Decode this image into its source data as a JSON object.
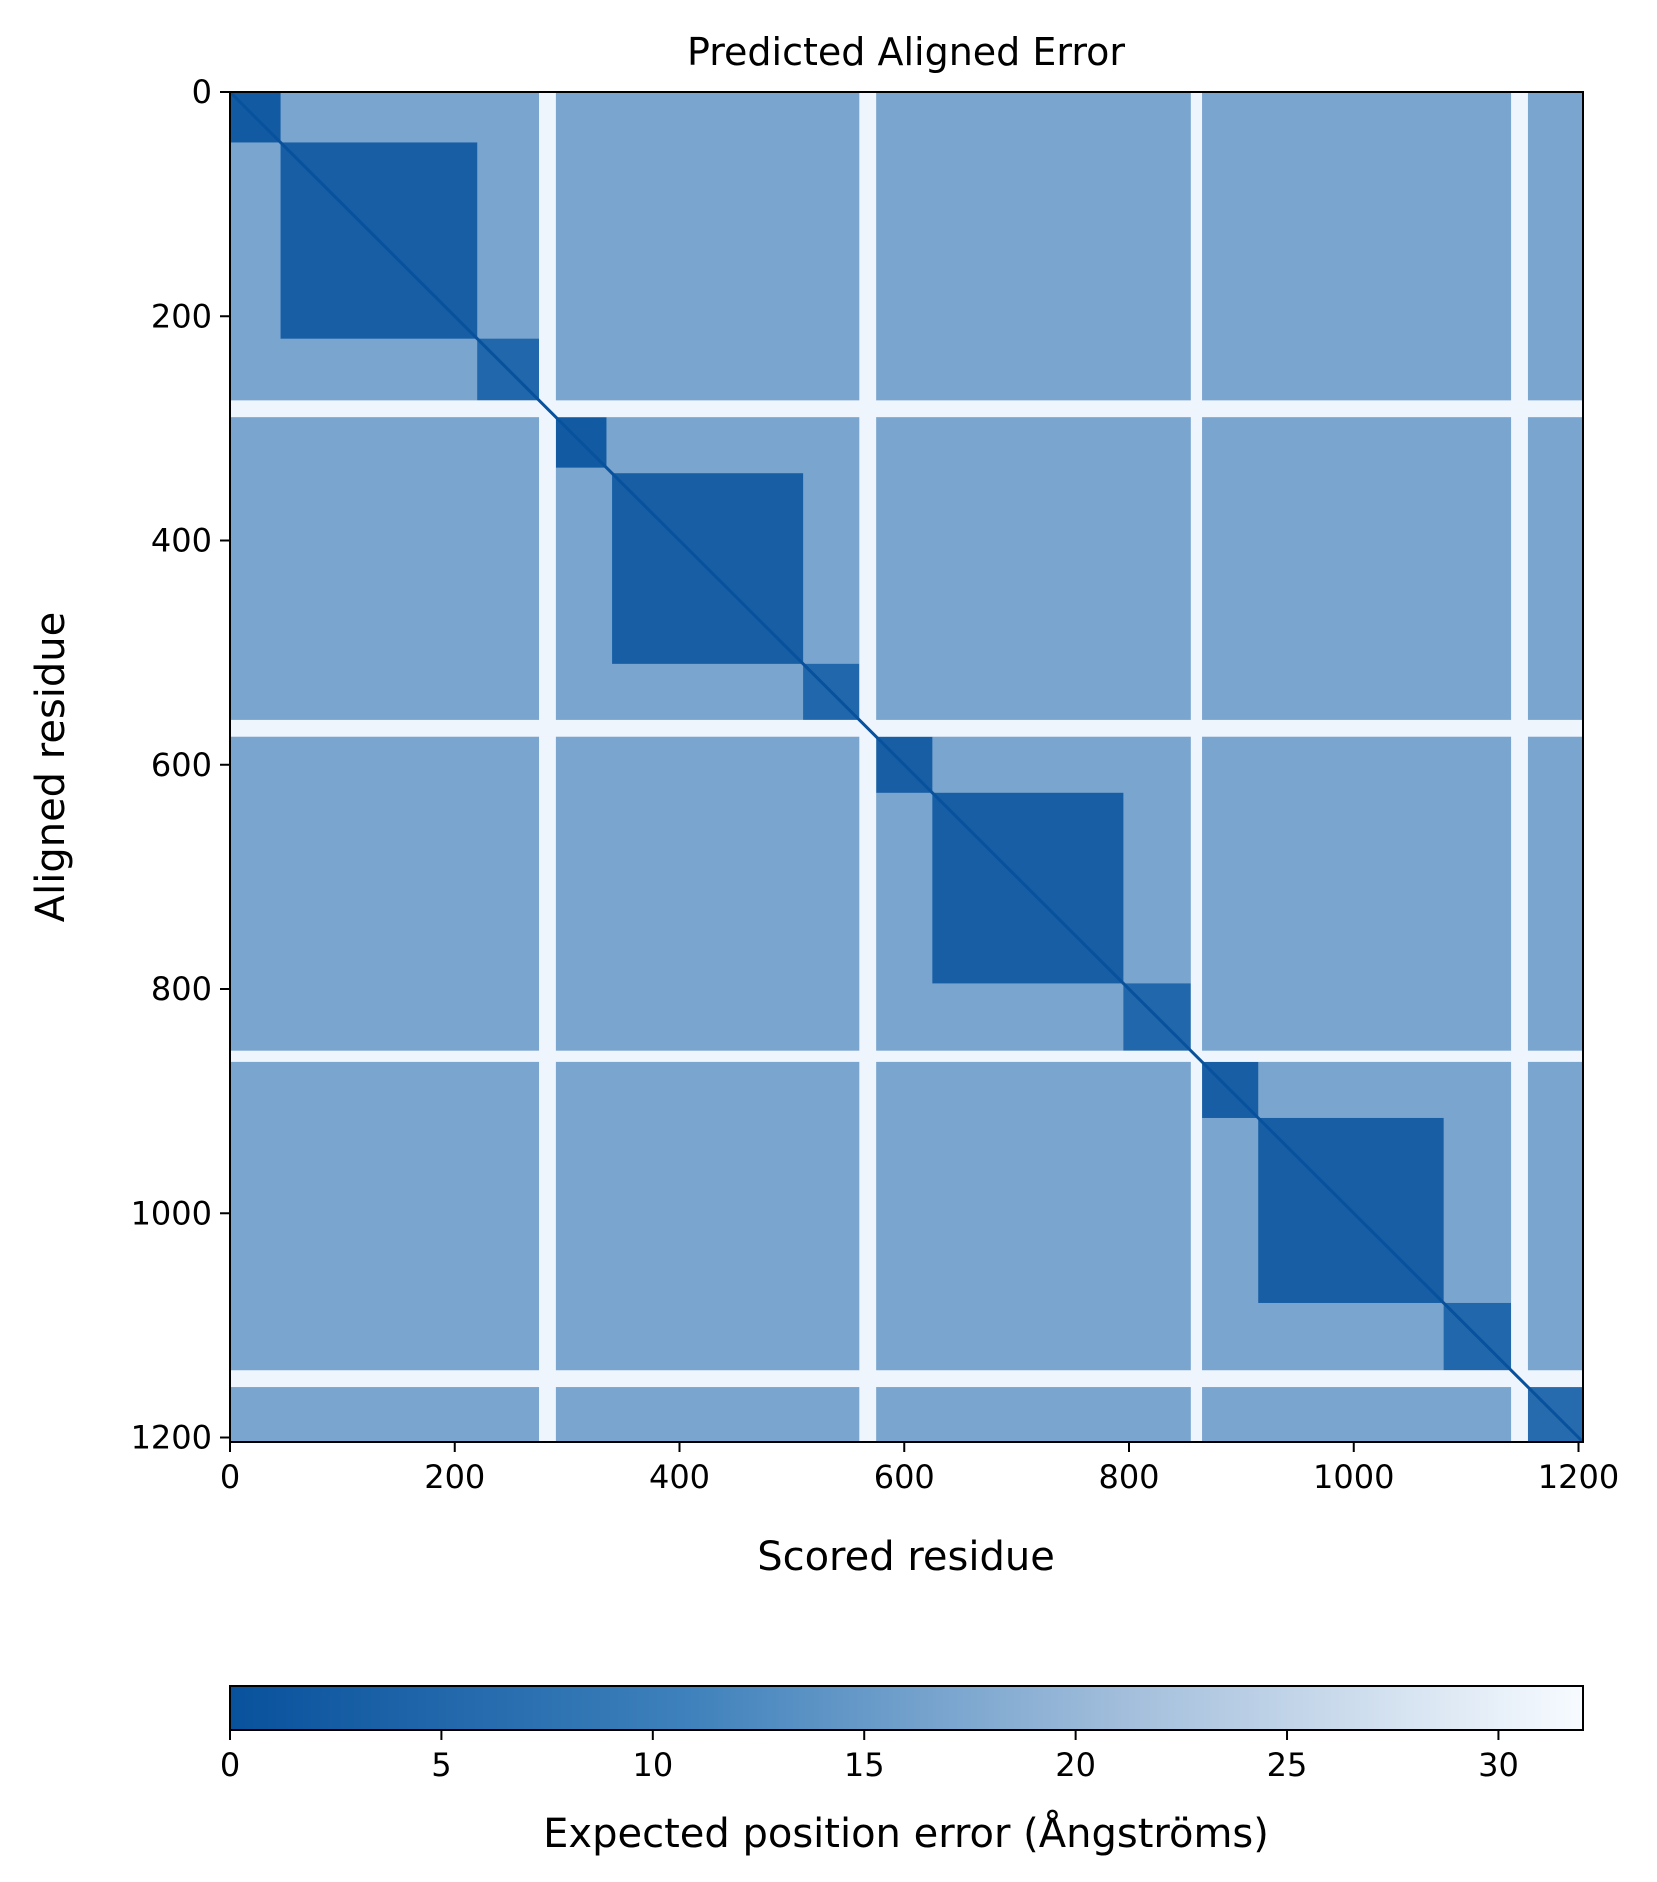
{
  "chart_data": {
    "type": "heatmap",
    "title": "Predicted Aligned Error",
    "xlabel": "Scored residue",
    "ylabel": "Aligned residue",
    "xlim": [
      0,
      1204
    ],
    "ylim": [
      1204,
      0
    ],
    "x_ticks": [
      0,
      200,
      400,
      600,
      800,
      1000,
      1200
    ],
    "y_ticks": [
      0,
      200,
      400,
      600,
      800,
      1000,
      1200
    ],
    "colorbar": {
      "label": "Expected position error (Ångströms)",
      "range": [
        0,
        32
      ],
      "ticks": [
        0,
        5,
        10,
        15,
        20,
        25,
        30
      ],
      "colors": [
        "#08519c",
        "#3d80bb",
        "#a4bfdc",
        "#f7fbff"
      ]
    },
    "domains": [
      {
        "start": 0,
        "end": 45,
        "pae": 2
      },
      {
        "start": 45,
        "end": 220,
        "pae": 3
      },
      {
        "start": 220,
        "end": 275,
        "pae": 5
      },
      {
        "start": 290,
        "end": 335,
        "pae": 2
      },
      {
        "start": 340,
        "end": 510,
        "pae": 3
      },
      {
        "start": 510,
        "end": 560,
        "pae": 5
      },
      {
        "start": 575,
        "end": 625,
        "pae": 3
      },
      {
        "start": 625,
        "end": 795,
        "pae": 3
      },
      {
        "start": 795,
        "end": 855,
        "pae": 5
      },
      {
        "start": 865,
        "end": 915,
        "pae": 3
      },
      {
        "start": 915,
        "end": 1080,
        "pae": 3
      },
      {
        "start": 1080,
        "end": 1140,
        "pae": 5
      },
      {
        "start": 1155,
        "end": 1204,
        "pae": 6
      }
    ],
    "inter_domain_pae": 17,
    "low_confidence_regions": [
      {
        "start": 275,
        "end": 290,
        "pae": 31
      },
      {
        "start": 560,
        "end": 575,
        "pae": 31
      },
      {
        "start": 855,
        "end": 865,
        "pae": 31
      },
      {
        "start": 1140,
        "end": 1155,
        "pae": 31
      }
    ]
  }
}
